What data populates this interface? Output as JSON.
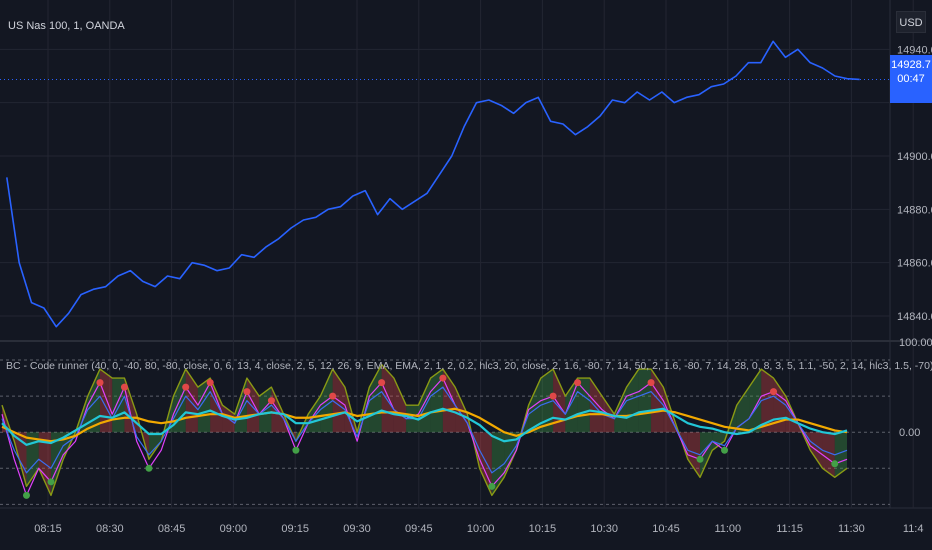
{
  "header": {
    "symbol": "US Nas 100, 1, OANDA",
    "currency": "USD"
  },
  "price_tag": {
    "price": "14928.7",
    "countdown": "00:47"
  },
  "indicator": {
    "label": "BC - Code runner (40, 0, -40, 80, -80, close, 0, 6, 13, 4, close, 2, 5, 12, 26, 9, EMA, EMA, 2, 1, 2, 0.2, hlc3, 20, close, 2, 1.6, -80, 7, 14, 50, 2, 1.6, -80, 7, 14, 28, 0, 8, 3, 5, 1.1, -50, 2, 14, hlc3, 1.5, -70)"
  },
  "colors": {
    "background": "#131722",
    "grid": "#232632",
    "price_line": "#2962ff",
    "price_axis_text": "#b2b5be",
    "osc_cyan": "#22c7d6",
    "osc_orange": "#f2a900",
    "osc_magenta": "#e040fb",
    "osc_blue": "#3a6df0",
    "osc_olive": "#8a9a14",
    "osc_green": "#43a047",
    "osc_red": "#e04848"
  },
  "chart_data": [
    {
      "type": "line",
      "title": "US Nas 100, 1, OANDA",
      "x_ticks": [
        "08:15",
        "08:30",
        "08:45",
        "09:00",
        "09:15",
        "09:30",
        "09:45",
        "10:00",
        "10:15",
        "10:30",
        "10:45",
        "11:00",
        "11:15",
        "11:30",
        "11:4"
      ],
      "y_ticks": [
        "14840.0",
        "14860.0",
        "14880.0",
        "14900.0",
        "14940.0"
      ],
      "ylim": [
        14831,
        14951
      ],
      "series": [
        {
          "x": [
            "08:05",
            "08:08",
            "08:11",
            "08:14",
            "08:17",
            "08:20",
            "08:23",
            "08:26",
            "08:29",
            "08:32",
            "08:35",
            "08:38",
            "08:41",
            "08:44",
            "08:47",
            "08:50",
            "08:53",
            "08:56",
            "08:59",
            "09:02",
            "09:05",
            "09:08",
            "09:11",
            "09:14",
            "09:17",
            "09:20",
            "09:23",
            "09:26",
            "09:29",
            "09:32",
            "09:35",
            "09:38",
            "09:41",
            "09:44",
            "09:47",
            "09:50",
            "09:53",
            "09:56",
            "09:59",
            "10:02",
            "10:05",
            "10:08",
            "10:11",
            "10:14",
            "10:17",
            "10:20",
            "10:23",
            "10:26",
            "10:29",
            "10:32",
            "10:35",
            "10:38",
            "10:41",
            "10:44",
            "10:47",
            "10:50",
            "10:53",
            "10:56",
            "10:59",
            "11:02",
            "11:05",
            "11:08",
            "11:11",
            "11:14",
            "11:17",
            "11:20",
            "11:23",
            "11:26",
            "11:29",
            "11:32"
          ],
          "values": [
            14892,
            14860,
            14845,
            14843,
            14836,
            14841,
            14848,
            14850,
            14851,
            14855,
            14857,
            14853,
            14851,
            14855,
            14854,
            14860,
            14859,
            14857,
            14858,
            14863,
            14862,
            14866,
            14869,
            14873,
            14876,
            14877,
            14880,
            14881,
            14885,
            14887,
            14878,
            14884,
            14880,
            14883,
            14886,
            14893,
            14900,
            14911,
            14920,
            14921,
            14919,
            14916,
            14920,
            14922,
            14913,
            14912,
            14908,
            14911,
            14915,
            14921,
            14920,
            14924,
            14921,
            14924,
            14920,
            14922,
            14923,
            14926,
            14927,
            14930,
            14935,
            14935,
            14943,
            14937,
            14940,
            14935,
            14933,
            14930,
            14929,
            14928.7
          ]
        }
      ]
    },
    {
      "type": "line",
      "title": "BC - Code runner",
      "y_ticks": [
        "100.00",
        "0.00"
      ],
      "ylim": [
        -84,
        100
      ],
      "reference_levels": [
        80,
        40,
        0,
        -40,
        -80
      ],
      "series": [
        {
          "name": "osc_cyan",
          "values": [
            10,
            -4,
            -14,
            -10,
            -12,
            -6,
            2,
            10,
            18,
            16,
            22,
            10,
            -2,
            -2,
            8,
            22,
            20,
            24,
            18,
            14,
            16,
            20,
            22,
            20,
            10,
            10,
            14,
            18,
            22,
            12,
            18,
            24,
            20,
            18,
            14,
            22,
            26,
            22,
            16,
            8,
            -4,
            -10,
            -8,
            2,
            10,
            16,
            14,
            20,
            24,
            22,
            18,
            16,
            22,
            24,
            26,
            18,
            10,
            6,
            4,
            0,
            -2,
            0,
            8,
            14,
            16,
            10,
            4,
            0,
            -2,
            2
          ]
        },
        {
          "name": "osc_orange",
          "values": [
            6,
            0,
            -6,
            -8,
            -10,
            -8,
            -4,
            4,
            10,
            14,
            16,
            16,
            12,
            10,
            12,
            16,
            18,
            20,
            20,
            16,
            18,
            20,
            22,
            20,
            16,
            16,
            18,
            20,
            22,
            18,
            20,
            22,
            22,
            20,
            18,
            22,
            24,
            26,
            22,
            16,
            8,
            0,
            -4,
            0,
            6,
            10,
            14,
            18,
            20,
            20,
            18,
            18,
            20,
            22,
            24,
            22,
            18,
            14,
            10,
            6,
            4,
            2,
            6,
            10,
            14,
            14,
            10,
            6,
            2,
            0
          ]
        },
        {
          "name": "osc_magenta",
          "values": [
            20,
            -30,
            -70,
            -40,
            -55,
            -25,
            -10,
            30,
            55,
            20,
            50,
            -10,
            -40,
            -20,
            20,
            50,
            30,
            55,
            20,
            10,
            45,
            20,
            35,
            15,
            -20,
            10,
            30,
            40,
            30,
            -10,
            40,
            55,
            25,
            15,
            20,
            45,
            60,
            30,
            10,
            -30,
            -60,
            -45,
            -20,
            25,
            35,
            40,
            20,
            55,
            40,
            25,
            15,
            40,
            45,
            55,
            35,
            5,
            -25,
            -30,
            -10,
            -20,
            5,
            15,
            40,
            45,
            35,
            10,
            -15,
            -25,
            -35,
            -30
          ]
        },
        {
          "name": "osc_blue",
          "values": [
            15,
            -20,
            -45,
            -30,
            -40,
            -15,
            -5,
            25,
            40,
            15,
            40,
            -5,
            -25,
            -10,
            15,
            40,
            25,
            45,
            20,
            10,
            35,
            20,
            30,
            15,
            -10,
            10,
            25,
            35,
            25,
            -5,
            35,
            45,
            25,
            15,
            15,
            40,
            50,
            30,
            10,
            -20,
            -45,
            -35,
            -15,
            20,
            30,
            35,
            20,
            45,
            35,
            20,
            15,
            35,
            40,
            45,
            30,
            5,
            -20,
            -25,
            -10,
            -15,
            5,
            15,
            35,
            40,
            30,
            10,
            -10,
            -20,
            -25,
            -20
          ]
        },
        {
          "name": "osc_olive",
          "values": [
            30,
            -10,
            -60,
            -40,
            -70,
            -30,
            0,
            40,
            70,
            60,
            60,
            20,
            -30,
            -10,
            40,
            70,
            50,
            60,
            30,
            20,
            60,
            40,
            50,
            20,
            -10,
            20,
            40,
            70,
            50,
            0,
            50,
            75,
            60,
            30,
            30,
            60,
            70,
            50,
            20,
            -40,
            -70,
            -50,
            -20,
            30,
            60,
            70,
            40,
            60,
            60,
            40,
            20,
            50,
            70,
            70,
            50,
            10,
            -30,
            -50,
            -20,
            -10,
            30,
            50,
            70,
            60,
            40,
            10,
            -20,
            -40,
            -50,
            -40
          ]
        }
      ]
    }
  ]
}
